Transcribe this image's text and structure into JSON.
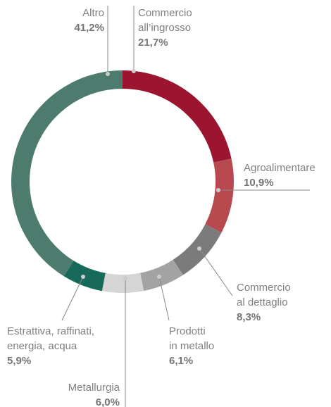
{
  "chart_data": {
    "type": "donut",
    "categories": [
      "Commercio\nall’ingrosso",
      "Agroalimentare",
      "Commercio\nal dettaglio",
      "Prodotti\nin metallo",
      "Metallurgia",
      "Estrattiva, raffinati,\nenergia, acqua",
      "Altro"
    ],
    "values": [
      21.7,
      10.9,
      8.3,
      6.1,
      6.0,
      5.9,
      41.2
    ],
    "value_labels": [
      "21,7%",
      "10,9%",
      "8,3%",
      "6,1%",
      "6,0%",
      "5,9%",
      "41,2%"
    ],
    "colors": [
      "#9c1530",
      "#b84a4f",
      "#7b7b7b",
      "#a3a3a3",
      "#d5d5d5",
      "#176a5a",
      "#4d7c6e"
    ]
  }
}
